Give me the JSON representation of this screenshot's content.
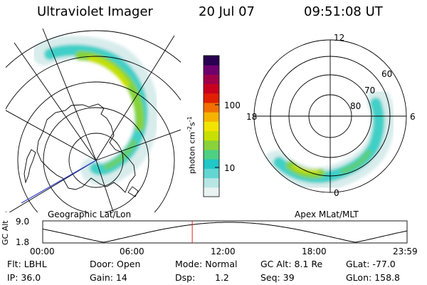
{
  "header": {
    "instrument": "Ultraviolet Imager",
    "date": "20 Jul 07",
    "time": "09:51:08 UT"
  },
  "left_panel": {
    "label": "Geographic Lat/Lon"
  },
  "right_panel": {
    "label": "Apex MLat/MLT",
    "mlt_labels": [
      "12",
      "18",
      "6",
      "0"
    ],
    "lat_labels": [
      "60",
      "70",
      "80"
    ]
  },
  "colorbar": {
    "unit_prefix": "photon cm",
    "unit_exp": "-2",
    "unit_s": "s",
    "unit_exp2": "-1",
    "ticks": [
      "100",
      "10"
    ],
    "colors": [
      "#eaf2f2",
      "#b7e6e4",
      "#63d6d2",
      "#20c8c8",
      "#4fd082",
      "#8ad23a",
      "#c8e000",
      "#f0e400",
      "#f4b400",
      "#f07000",
      "#e02000",
      "#c8001e",
      "#a0004a",
      "#70006e",
      "#2a0050"
    ]
  },
  "timeline": {
    "ylabel": "GC Alt",
    "y_ticks": [
      "9.0",
      "1.8"
    ],
    "x_ticks": [
      "00:00",
      "06:00",
      "12:00",
      "18:00",
      "23:59"
    ],
    "marker_time_hours": 9.85
  },
  "footer": {
    "filter": "Flt: LBHL",
    "door": "Door: Open",
    "mode": "Mode: Normal",
    "gc_alt": "GC Alt: 8.1 Re",
    "glat": "GLat: -77.0",
    "ip": "IP: 36.0",
    "gain": "Gain: 14",
    "dsp_label": "Dsp:",
    "dsp_value": "1.2",
    "seq": "Seq: 39",
    "glon": "GLon: 158.8"
  }
}
